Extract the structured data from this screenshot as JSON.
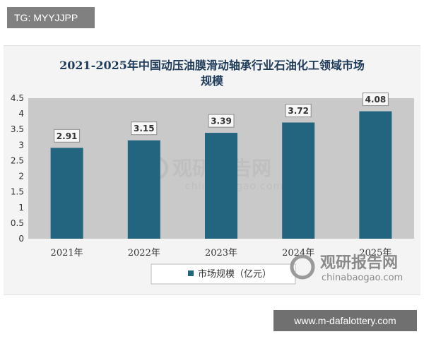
{
  "top_tag": "TG: MYYJJPP",
  "bottom_tag": "www.m-dafalottery.com",
  "watermark": {
    "brand_cn": "观研报告网",
    "brand_en": "chinabaogao.com"
  },
  "colors": {
    "bar": "#23657f",
    "title": "#1f3b5a",
    "plot_bg": "#c9c9c9",
    "frame_bg": "#f4f4f4"
  },
  "chart_data": {
    "type": "bar",
    "title": "2021-2025年中国动压油膜滑动轴承行业石油化工领域市场规模",
    "title_lines": [
      "2021-2025年中国动压油膜滑动轴承行业石油化工领域市场",
      "规模"
    ],
    "categories": [
      "2021年",
      "2022年",
      "2023年",
      "2024年",
      "2025年"
    ],
    "series": [
      {
        "name": "市场规模（亿元）",
        "values": [
          2.91,
          3.15,
          3.39,
          3.72,
          4.08
        ]
      }
    ],
    "data_labels": [
      "2.91",
      "3.15",
      "3.39",
      "3.72",
      "4.08"
    ],
    "yticks": [
      "0",
      "0.5",
      "1",
      "1.5",
      "2",
      "2.5",
      "3",
      "3.5",
      "4",
      "4.5"
    ],
    "ylim": [
      0,
      4.5
    ],
    "grid": false,
    "legend_position": "bottom"
  }
}
